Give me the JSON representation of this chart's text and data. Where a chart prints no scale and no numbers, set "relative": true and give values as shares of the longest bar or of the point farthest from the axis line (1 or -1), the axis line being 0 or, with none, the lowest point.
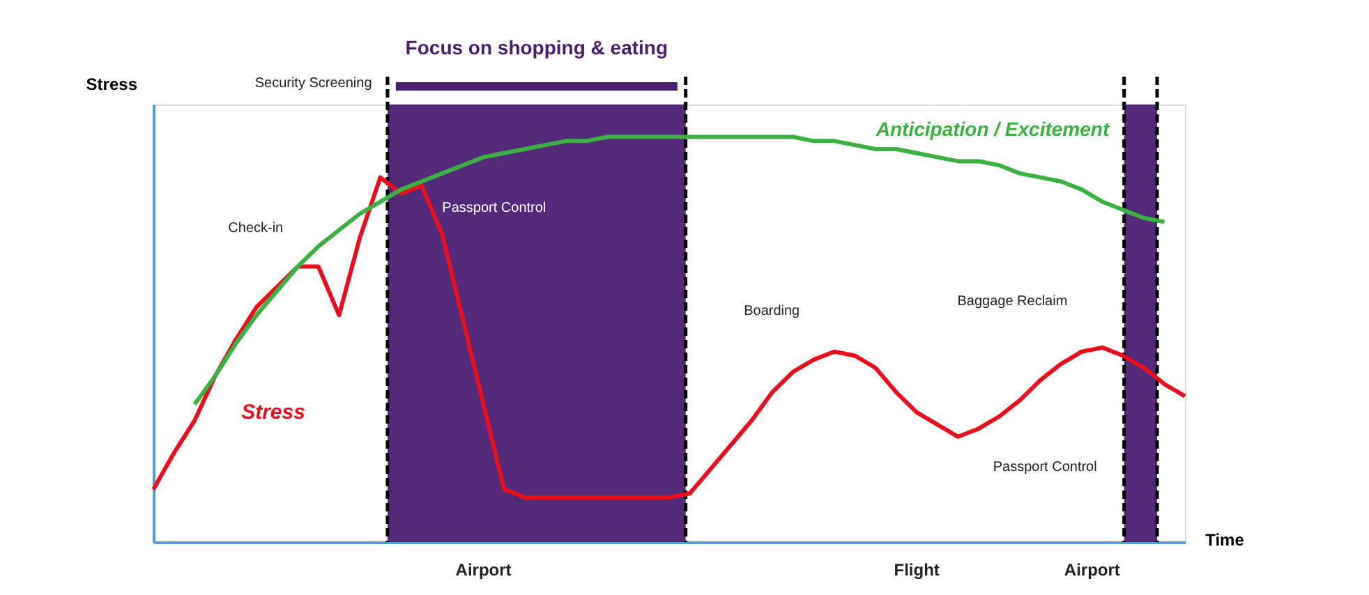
{
  "chart_data": {
    "type": "line",
    "relative": true,
    "ylabel": "Stress",
    "xlabel": "Time",
    "grid": false,
    "legend": false,
    "marker": "none",
    "line_style": "solid",
    "categories": [
      null,
      null,
      null,
      null,
      null,
      null,
      null,
      null,
      null,
      null,
      null,
      null,
      null,
      null,
      null,
      null,
      null,
      null,
      null,
      null,
      null,
      null,
      null,
      null,
      null,
      null,
      null,
      null,
      null,
      null,
      null,
      null,
      null,
      null,
      null,
      null,
      null,
      null,
      null,
      null,
      null,
      null,
      null,
      null,
      null,
      null,
      null,
      null,
      null,
      null,
      null
    ],
    "series": [
      {
        "name": "Stress",
        "color": "#e8101f",
        "values": [
          0.13,
          0.22,
          0.3,
          0.41,
          0.5,
          0.58,
          0.63,
          0.68,
          0.68,
          0.56,
          0.75,
          0.9,
          0.86,
          0.88,
          0.76,
          0.55,
          0.34,
          0.13,
          0.11,
          0.11,
          0.11,
          0.11,
          0.11,
          0.11,
          0.11,
          0.11,
          0.12,
          0.18,
          0.24,
          0.3,
          0.37,
          0.42,
          0.45,
          0.47,
          0.46,
          0.43,
          0.37,
          0.32,
          0.29,
          0.26,
          0.28,
          0.31,
          0.35,
          0.4,
          0.44,
          0.47,
          0.48,
          0.46,
          0.43,
          0.39,
          0.36
        ]
      },
      {
        "name": "Anticipation / Excitement",
        "color": "#3cb043",
        "values": [
          null,
          null,
          0.34,
          0.41,
          0.49,
          0.56,
          0.62,
          0.68,
          0.73,
          0.77,
          0.81,
          0.84,
          0.87,
          0.89,
          0.91,
          0.93,
          0.95,
          0.96,
          0.97,
          0.98,
          0.99,
          0.99,
          1.0,
          1.0,
          1.0,
          1.0,
          1.0,
          1.0,
          1.0,
          1.0,
          1.0,
          1.0,
          0.99,
          0.99,
          0.98,
          0.97,
          0.97,
          0.96,
          0.95,
          0.94,
          0.94,
          0.93,
          0.91,
          0.9,
          0.89,
          0.87,
          0.84,
          0.82,
          0.8,
          0.79,
          null
        ]
      }
    ],
    "annotations": [
      "Focus on shopping & eating",
      "Check-in",
      "Security Screening",
      "Passport Control",
      "Boarding",
      "Baggage Reclaim",
      "Passport Control",
      "Airport",
      "Flight",
      "Airport"
    ]
  }
}
